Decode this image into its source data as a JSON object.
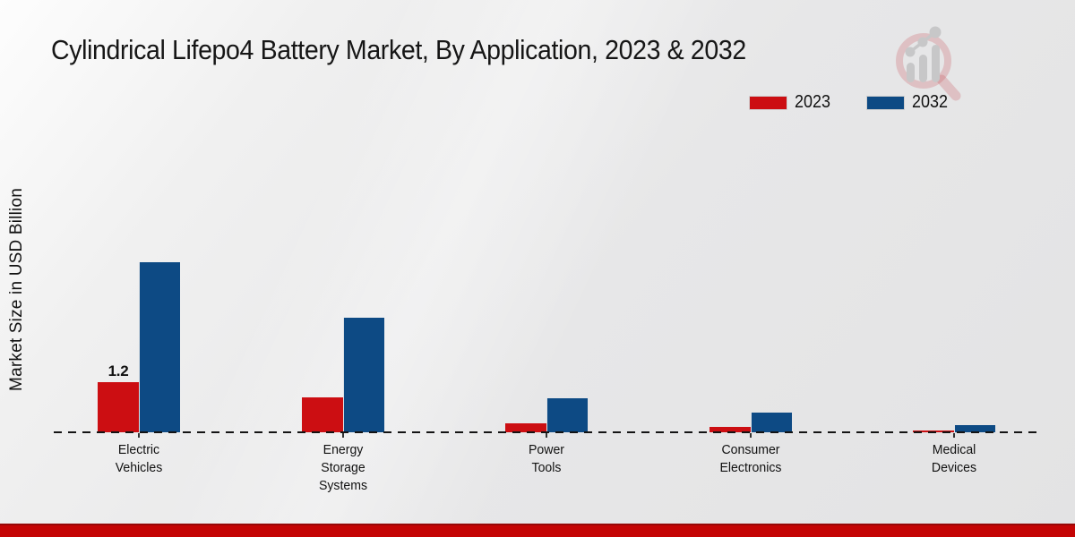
{
  "header": {
    "title": "Cylindrical Lifepo4 Battery Market, By Application, 2023 & 2032"
  },
  "axes": {
    "y_label": "Market Size in USD Billion"
  },
  "legend": [
    {
      "label": "2023",
      "color": "#cc0e12"
    },
    {
      "label": "2032",
      "color": "#0d4a84"
    }
  ],
  "chart_data": {
    "type": "bar",
    "title": "Cylindrical Lifepo4 Battery Market, By Application, 2023 & 2032",
    "xlabel": "",
    "ylabel": "Market Size in USD Billion",
    "categories": [
      "Electric Vehicles",
      "Energy Storage Systems",
      "Power Tools",
      "Consumer Electronics",
      "Medical Devices"
    ],
    "series": [
      {
        "name": "2023",
        "color": "#cc0e12",
        "values": [
          1.2,
          0.84,
          0.21,
          0.13,
          0.05
        ]
      },
      {
        "name": "2032",
        "color": "#0d4a84",
        "values": [
          4.07,
          2.74,
          0.81,
          0.47,
          0.17
        ]
      }
    ],
    "bar_labels": [
      {
        "series_index": 0,
        "category_index": 0,
        "text": "1.2"
      }
    ],
    "ylim": [
      0,
      4.5
    ],
    "grid": "off",
    "axis_style": "dashed zero baseline only, no y-ticks",
    "legend_position": "top-right"
  },
  "branding": {
    "logo_icon": "magnifier-bar-chart-logo",
    "footer_bar_color": "#c40404"
  }
}
